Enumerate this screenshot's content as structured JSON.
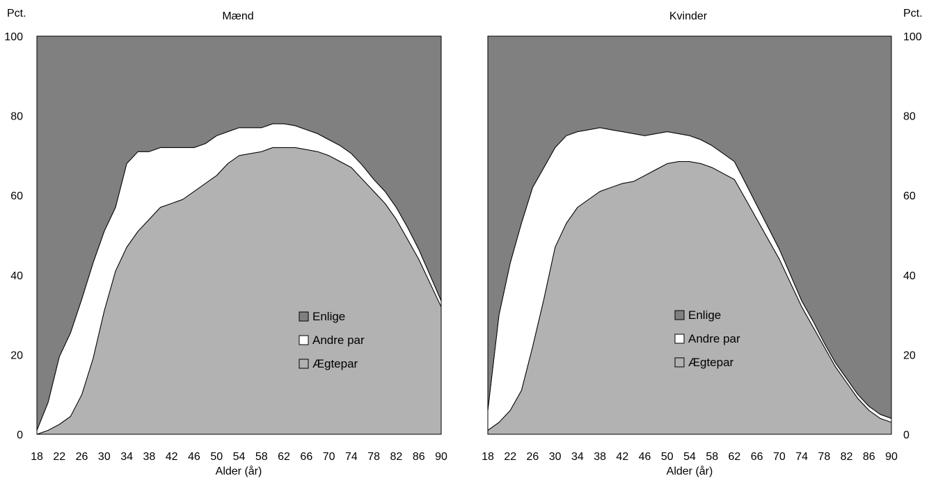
{
  "chart_data": [
    {
      "type": "area",
      "title": "Mænd",
      "xlabel": "Alder (år)",
      "ylabel": "Pct.",
      "ylim": [
        0,
        100
      ],
      "xlim": [
        18,
        90
      ],
      "x_ticks": [
        18,
        22,
        26,
        30,
        34,
        38,
        42,
        46,
        50,
        54,
        58,
        62,
        66,
        70,
        74,
        78,
        82,
        86,
        90
      ],
      "y_ticks": [
        0,
        20,
        40,
        60,
        80,
        100
      ],
      "stacking": "stacked_to_100",
      "x": [
        18,
        20,
        22,
        24,
        26,
        28,
        30,
        32,
        34,
        36,
        38,
        40,
        42,
        44,
        46,
        48,
        50,
        52,
        54,
        56,
        58,
        60,
        62,
        64,
        66,
        68,
        70,
        72,
        74,
        76,
        78,
        80,
        82,
        84,
        86,
        88,
        90
      ],
      "series": [
        {
          "name": "Ægtepar",
          "color": "#b2b2b2",
          "values": [
            0,
            1,
            2.5,
            4.5,
            10,
            19,
            31,
            41,
            47,
            51,
            54,
            57,
            58,
            59,
            61,
            63,
            65,
            68,
            70,
            70.5,
            71,
            72,
            72,
            72,
            71.5,
            71,
            70,
            68.5,
            67,
            64,
            61,
            58,
            54,
            49,
            44,
            38,
            32
          ]
        },
        {
          "name": "Andre par",
          "color": "#ffffff",
          "values": [
            1,
            7,
            17,
            21,
            24,
            24,
            20,
            16,
            21,
            20,
            17,
            15,
            14,
            13,
            11,
            10,
            10,
            8,
            7,
            6.5,
            6,
            6,
            6,
            5.5,
            5,
            4.5,
            4,
            4,
            3.5,
            3.5,
            3,
            3,
            3,
            3,
            2.5,
            2,
            1.5
          ]
        },
        {
          "name": "Enlige",
          "color": "#808080",
          "values": [
            99,
            92,
            80.5,
            74.5,
            66,
            57,
            49,
            43,
            32,
            29,
            29,
            28,
            28,
            28,
            28,
            27,
            25,
            24,
            23,
            23,
            23,
            22,
            22,
            22.5,
            23.5,
            24.5,
            26,
            27.5,
            29.5,
            32.5,
            36,
            39,
            43,
            48,
            53.5,
            60,
            66.5
          ]
        }
      ],
      "legend": [
        "Enlige",
        "Andre par",
        "Ægtepar"
      ],
      "legend_position": "center-right"
    },
    {
      "type": "area",
      "title": "Kvinder",
      "xlabel": "Alder (år)",
      "ylabel": "Pct.",
      "ylim": [
        0,
        100
      ],
      "xlim": [
        18,
        90
      ],
      "x_ticks": [
        18,
        22,
        26,
        30,
        34,
        38,
        42,
        46,
        50,
        54,
        58,
        62,
        66,
        70,
        74,
        78,
        82,
        86,
        90
      ],
      "y_ticks": [
        0,
        20,
        40,
        60,
        80,
        100
      ],
      "stacking": "stacked_to_100",
      "x": [
        18,
        20,
        22,
        24,
        26,
        28,
        30,
        32,
        34,
        36,
        38,
        40,
        42,
        44,
        46,
        48,
        50,
        52,
        54,
        56,
        58,
        60,
        62,
        64,
        66,
        68,
        70,
        72,
        74,
        76,
        78,
        80,
        82,
        84,
        86,
        88,
        90
      ],
      "series": [
        {
          "name": "Ægtepar",
          "color": "#b2b2b2",
          "values": [
            1,
            3,
            6,
            11,
            22,
            34,
            47,
            53,
            57,
            59,
            61,
            62,
            63,
            63.5,
            65,
            66.5,
            68,
            68.5,
            68.5,
            68,
            67,
            65.5,
            64,
            59,
            54,
            49,
            44,
            38,
            32,
            27,
            22,
            17,
            13,
            9,
            6,
            4,
            3
          ]
        },
        {
          "name": "Andre par",
          "color": "#ffffff",
          "values": [
            5,
            27,
            37,
            42,
            40,
            33,
            25,
            22,
            19,
            17.5,
            16,
            14.5,
            13,
            12,
            10,
            9,
            8,
            7,
            6.5,
            6,
            5.5,
            5,
            4.5,
            4,
            3.5,
            3,
            2.5,
            2,
            1.5,
            1.5,
            1,
            1,
            1,
            1,
            1,
            1,
            1
          ]
        },
        {
          "name": "Enlige",
          "color": "#808080",
          "values": [
            94,
            70,
            57,
            47,
            38,
            33,
            28,
            25,
            24,
            23.5,
            23,
            23.5,
            24,
            24.5,
            25,
            24.5,
            24,
            24.5,
            25,
            26,
            27.5,
            29.5,
            31.5,
            37,
            42.5,
            48,
            53.5,
            60,
            66.5,
            71.5,
            77,
            82,
            86,
            90,
            93,
            95,
            96
          ]
        }
      ],
      "legend": [
        "Enlige",
        "Andre par",
        "Ægtepar"
      ],
      "legend_position": "center-right"
    }
  ]
}
